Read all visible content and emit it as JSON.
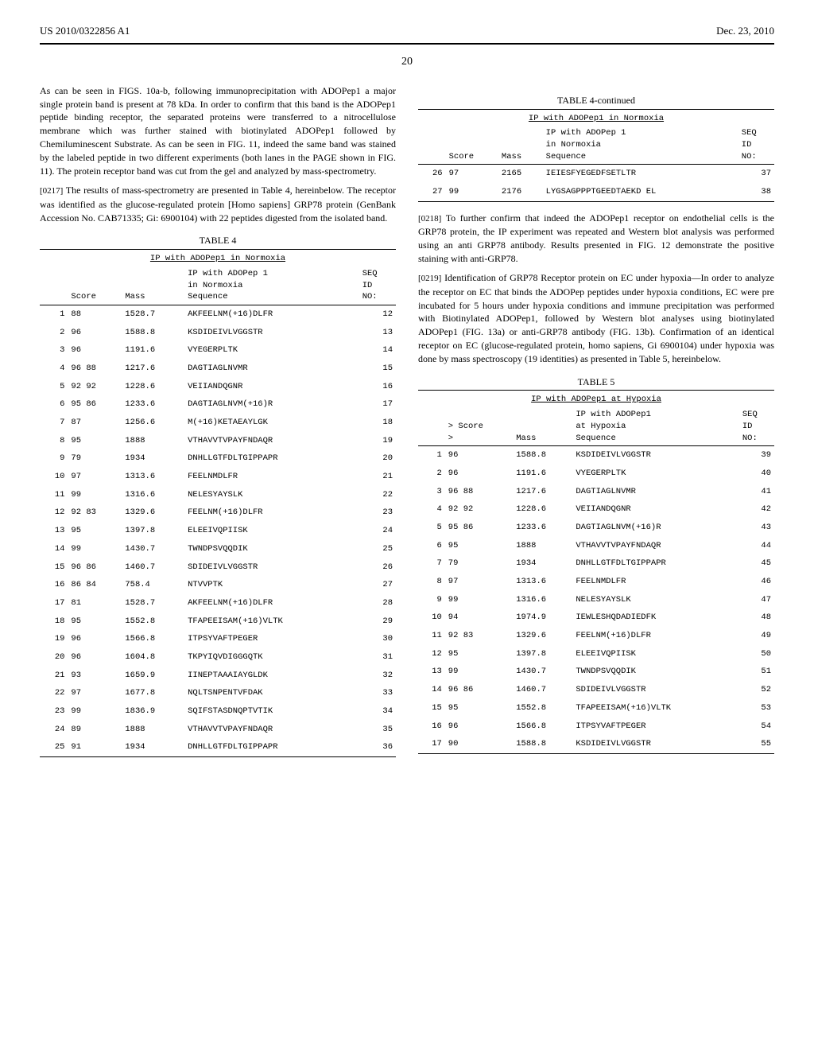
{
  "header": {
    "left": "US 2010/0322856 A1",
    "right": "Dec. 23, 2010"
  },
  "page_number": "20",
  "left_col": {
    "para1": "As can be seen in FIGS. 10a-b, following immunoprecipitation with ADOPep1 a major single protein band is present at 78 kDa. In order to confirm that this band is the ADOPep1 peptide binding receptor, the separated proteins were transferred to a nitrocellulose membrane which was further stained with biotinylated ADOPep1 followed by Chemiluminescent Substrate. As can be seen in FIG. 11, indeed the same band was stained by the labeled peptide in two different experiments (both lanes in the PAGE shown in FIG. 11). The protein receptor band was cut from the gel and analyzed by mass-spectrometry.",
    "para2_num": "[0217]",
    "para2": "The results of mass-spectrometry are presented in Table 4, hereinbelow. The receptor was identified as the glucose-regulated protein [Homo sapiens] GRP78 protein (GenBank Accession No. CAB71335; Gi: 6900104) with 22 peptides digested from the isolated band.",
    "table4": {
      "title": "TABLE 4",
      "subtitle": "IP with ADOPep1 in Normoxia",
      "headers": [
        "",
        "Score",
        "Mass",
        "IP with ADOPep 1\nin Normoxia\nSequence",
        "SEQ\nID\nNO:"
      ],
      "rows": [
        [
          "1",
          "88",
          "1528.7",
          "AKFEELNM(+16)DLFR",
          "12"
        ],
        [
          "2",
          "96",
          "1588.8",
          "KSDIDEIVLVGGSTR",
          "13"
        ],
        [
          "3",
          "96",
          "1191.6",
          "VYEGERPLTK",
          "14"
        ],
        [
          "4",
          "96 88",
          "1217.6",
          "DAGTIAGLNVMR",
          "15"
        ],
        [
          "5",
          "92 92",
          "1228.6",
          "VEIIANDQGNR",
          "16"
        ],
        [
          "6",
          "95 86",
          "1233.6",
          "DAGTIAGLNVM(+16)R",
          "17"
        ],
        [
          "7",
          "87",
          "1256.6",
          "M(+16)KETAEAYLGK",
          "18"
        ],
        [
          "8",
          "95",
          "1888",
          "VTHAVVTVPAYFNDAQR",
          "19"
        ],
        [
          "9",
          "79",
          "1934",
          "DNHLLGTFDLTGIPPAPR",
          "20"
        ],
        [
          "10",
          "97",
          "1313.6",
          "FEELNMDLFR",
          "21"
        ],
        [
          "11",
          "99",
          "1316.6",
          "NELESYAYSLK",
          "22"
        ],
        [
          "12",
          "92 83",
          "1329.6",
          "FEELNM(+16)DLFR",
          "23"
        ],
        [
          "13",
          "95",
          "1397.8",
          "ELEEIVQPIISK",
          "24"
        ],
        [
          "14",
          "99",
          "1430.7",
          "TWNDPSVQQDIK",
          "25"
        ],
        [
          "15",
          "96 86",
          "1460.7",
          "SDIDEIVLVGGSTR",
          "26"
        ],
        [
          "16",
          "86 84",
          "758.4",
          "NTVVPTK",
          "27"
        ],
        [
          "17",
          "81",
          "1528.7",
          "AKFEELNM(+16)DLFR",
          "28"
        ],
        [
          "18",
          "95",
          "1552.8",
          "TFAPEEISAM(+16)VLTK",
          "29"
        ],
        [
          "19",
          "96",
          "1566.8",
          "ITPSYVAFTPEGER",
          "30"
        ],
        [
          "20",
          "96",
          "1604.8",
          "TKPYIQVDIGGGQTK",
          "31"
        ],
        [
          "21",
          "93",
          "1659.9",
          "IINEPTAAAIAYGLDK",
          "32"
        ],
        [
          "22",
          "97",
          "1677.8",
          "NQLTSNPENTVFDAK",
          "33"
        ],
        [
          "23",
          "99",
          "1836.9",
          "SQIFSTASDNQPTVTIK",
          "34"
        ],
        [
          "24",
          "89",
          "1888",
          "VTHAVVTVPAYFNDAQR",
          "35"
        ],
        [
          "25",
          "91",
          "1934",
          "DNHLLGTFDLTGIPPAPR",
          "36"
        ]
      ]
    }
  },
  "right_col": {
    "table4_cont": {
      "title": "TABLE 4-continued",
      "subtitle": "IP with ADOPep1 in Normoxia",
      "headers": [
        "",
        "Score",
        "Mass",
        "IP with ADOPep 1\nin Normoxia\nSequence",
        "SEQ\nID\nNO:"
      ],
      "rows": [
        [
          "26",
          "97",
          "2165",
          "IEIESFYEGEDFSETLTR",
          "37"
        ],
        [
          "27",
          "99",
          "2176",
          "LYGSAGPPPTGEEDTAEKD EL",
          "38"
        ]
      ]
    },
    "para1_num": "[0218]",
    "para1": "To further confirm that indeed the ADOPep1 receptor on endothelial cells is the GRP78 protein, the IP experiment was repeated and Western blot analysis was performed using an anti GRP78 antibody. Results presented in FIG. 12 demonstrate the positive staining with anti-GRP78.",
    "para2_num": "[0219]",
    "para2": "Identification of GRP78 Receptor protein on EC under hypoxia—In order to analyze the receptor on EC that binds the ADOPep peptides under hypoxia conditions, EC were pre incubated for 5 hours under hypoxia conditions and immune precipitation was performed with Biotinylated ADOPep1, followed by Western blot analyses using biotinylated ADOPep1 (FIG. 13a) or anti-GRP78 antibody (FIG. 13b). Confirmation of an identical receptor on EC (glucose-regulated protein, homo sapiens, Gi 6900104) under hypoxia was done by mass spectroscopy (19 identities) as presented in Table 5, hereinbelow.",
    "table5": {
      "title": "TABLE 5",
      "subtitle": "IP with ADOPep1 at Hypoxia",
      "headers": [
        "",
        "> Score\n>",
        "Mass",
        "IP with ADOPep1\nat Hypoxia\nSequence",
        "SEQ\nID\nNO:"
      ],
      "rows": [
        [
          "1",
          "96",
          "1588.8",
          "KSDIDEIVLVGGSTR",
          "39"
        ],
        [
          "2",
          "96",
          "1191.6",
          "VYEGERPLTK",
          "40"
        ],
        [
          "3",
          "96 88",
          "1217.6",
          "DAGTIAGLNVMR",
          "41"
        ],
        [
          "4",
          "92 92",
          "1228.6",
          "VEIIANDQGNR",
          "42"
        ],
        [
          "5",
          "95 86",
          "1233.6",
          "DAGTIAGLNVM(+16)R",
          "43"
        ],
        [
          "6",
          "95",
          "1888",
          "VTHAVVTVPAYFNDAQR",
          "44"
        ],
        [
          "7",
          "79",
          "1934",
          "DNHLLGTFDLTGIPPAPR",
          "45"
        ],
        [
          "8",
          "97",
          "1313.6",
          "FEELNMDLFR",
          "46"
        ],
        [
          "9",
          "99",
          "1316.6",
          "NELESYAYSLK",
          "47"
        ],
        [
          "10",
          "94",
          "1974.9",
          "IEWLESHQDADIEDFK",
          "48"
        ],
        [
          "11",
          "92 83",
          "1329.6",
          "FEELNM(+16)DLFR",
          "49"
        ],
        [
          "12",
          "95",
          "1397.8",
          "ELEEIVQPIISK",
          "50"
        ],
        [
          "13",
          "99",
          "1430.7",
          "TWNDPSVQQDIK",
          "51"
        ],
        [
          "14",
          "96 86",
          "1460.7",
          "SDIDEIVLVGGSTR",
          "52"
        ],
        [
          "15",
          "95",
          "1552.8",
          "TFAPEEISAM(+16)VLTK",
          "53"
        ],
        [
          "16",
          "96",
          "1566.8",
          "ITPSYVAFTPEGER",
          "54"
        ],
        [
          "17",
          "90",
          "1588.8",
          "KSDIDEIVLVGGSTR",
          "55"
        ]
      ]
    }
  }
}
